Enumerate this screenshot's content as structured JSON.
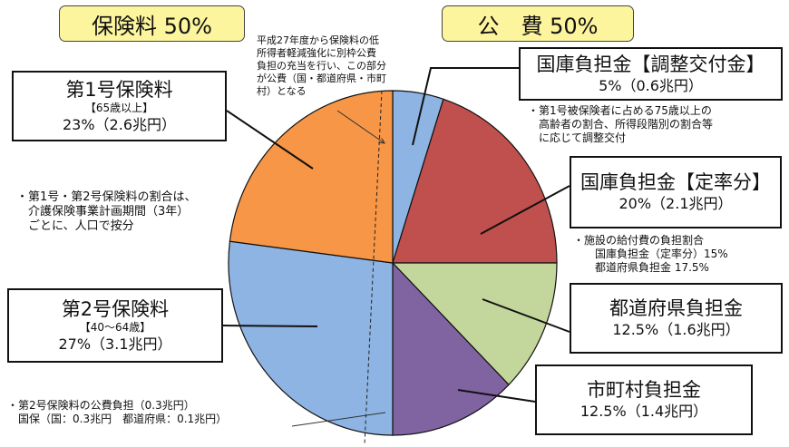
{
  "headers": {
    "insurance": "保険料 50%",
    "public": "公　費 50%"
  },
  "chart_data": {
    "type": "pie",
    "start": "12 o'clock",
    "direction": "clockwise",
    "slices": [
      {
        "name": "国庫負担金【調整交付金】",
        "value": 5,
        "amount": "0.6兆円",
        "color": "#8db4e2"
      },
      {
        "name": "国庫負担金【定率分】",
        "value": 20,
        "amount": "2.1兆円",
        "color": "#c0504d"
      },
      {
        "name": "都道府県負担金",
        "value": 12.5,
        "amount": "1.6兆円",
        "color": "#c3d69b"
      },
      {
        "name": "市町村負担金",
        "value": 12.5,
        "amount": "1.4兆円",
        "color": "#8064a2"
      },
      {
        "name": "第2号保険料",
        "value": 27,
        "amount": "3.1兆円",
        "color": "#8eb4e3"
      },
      {
        "name": "第1号保険料",
        "value": 23,
        "amount": "2.6兆円",
        "color": "#f79646"
      }
    ]
  },
  "labels": {
    "chosei": {
      "title": "国庫負担金【調整交付金】",
      "value": "5%（0.6兆円）"
    },
    "teiritsu": {
      "title": "国庫負担金【定率分】",
      "value": "20%（2.1兆円）"
    },
    "todofuken": {
      "title": "都道府県負担金",
      "value": "12.5%（1.6兆円）"
    },
    "shichoson": {
      "title": "市町村負担金",
      "value": "12.5%（1.4兆円）"
    },
    "dai2": {
      "title": "第2号保険料",
      "sub": "【40～64歳】",
      "value": "27%（3.1兆円）"
    },
    "dai1": {
      "title": "第1号保険料",
      "sub": "【65歳以上】",
      "value": "23%（2.6兆円）"
    }
  },
  "notes": {
    "top": "平成27年度から保険料の低\n所得者軽減強化に別枠公費\n負担の充当を行い、この部分\nが公費（国・都道府県・市町\n村）となる",
    "ratio": "・第1号・第2号保険料の割合は、\n　介護保険事業計画期間（3年）\n　ごとに、人口で按分",
    "dai2_public": "・第2号保険料の公費負担（0.3兆円）\n　国保（国：0.3兆円　都道府県：0.1兆円）",
    "chosei": "・第1号被保険者に占める75歳以上の\n　高齢者の割合、所得段階別の割合等\n　に応じて調整交付",
    "shisetsu": "・施設の給付費の負担割合\n　　国庫負担金（定率分）15%\n　　都道府県負担金 17.5%"
  }
}
